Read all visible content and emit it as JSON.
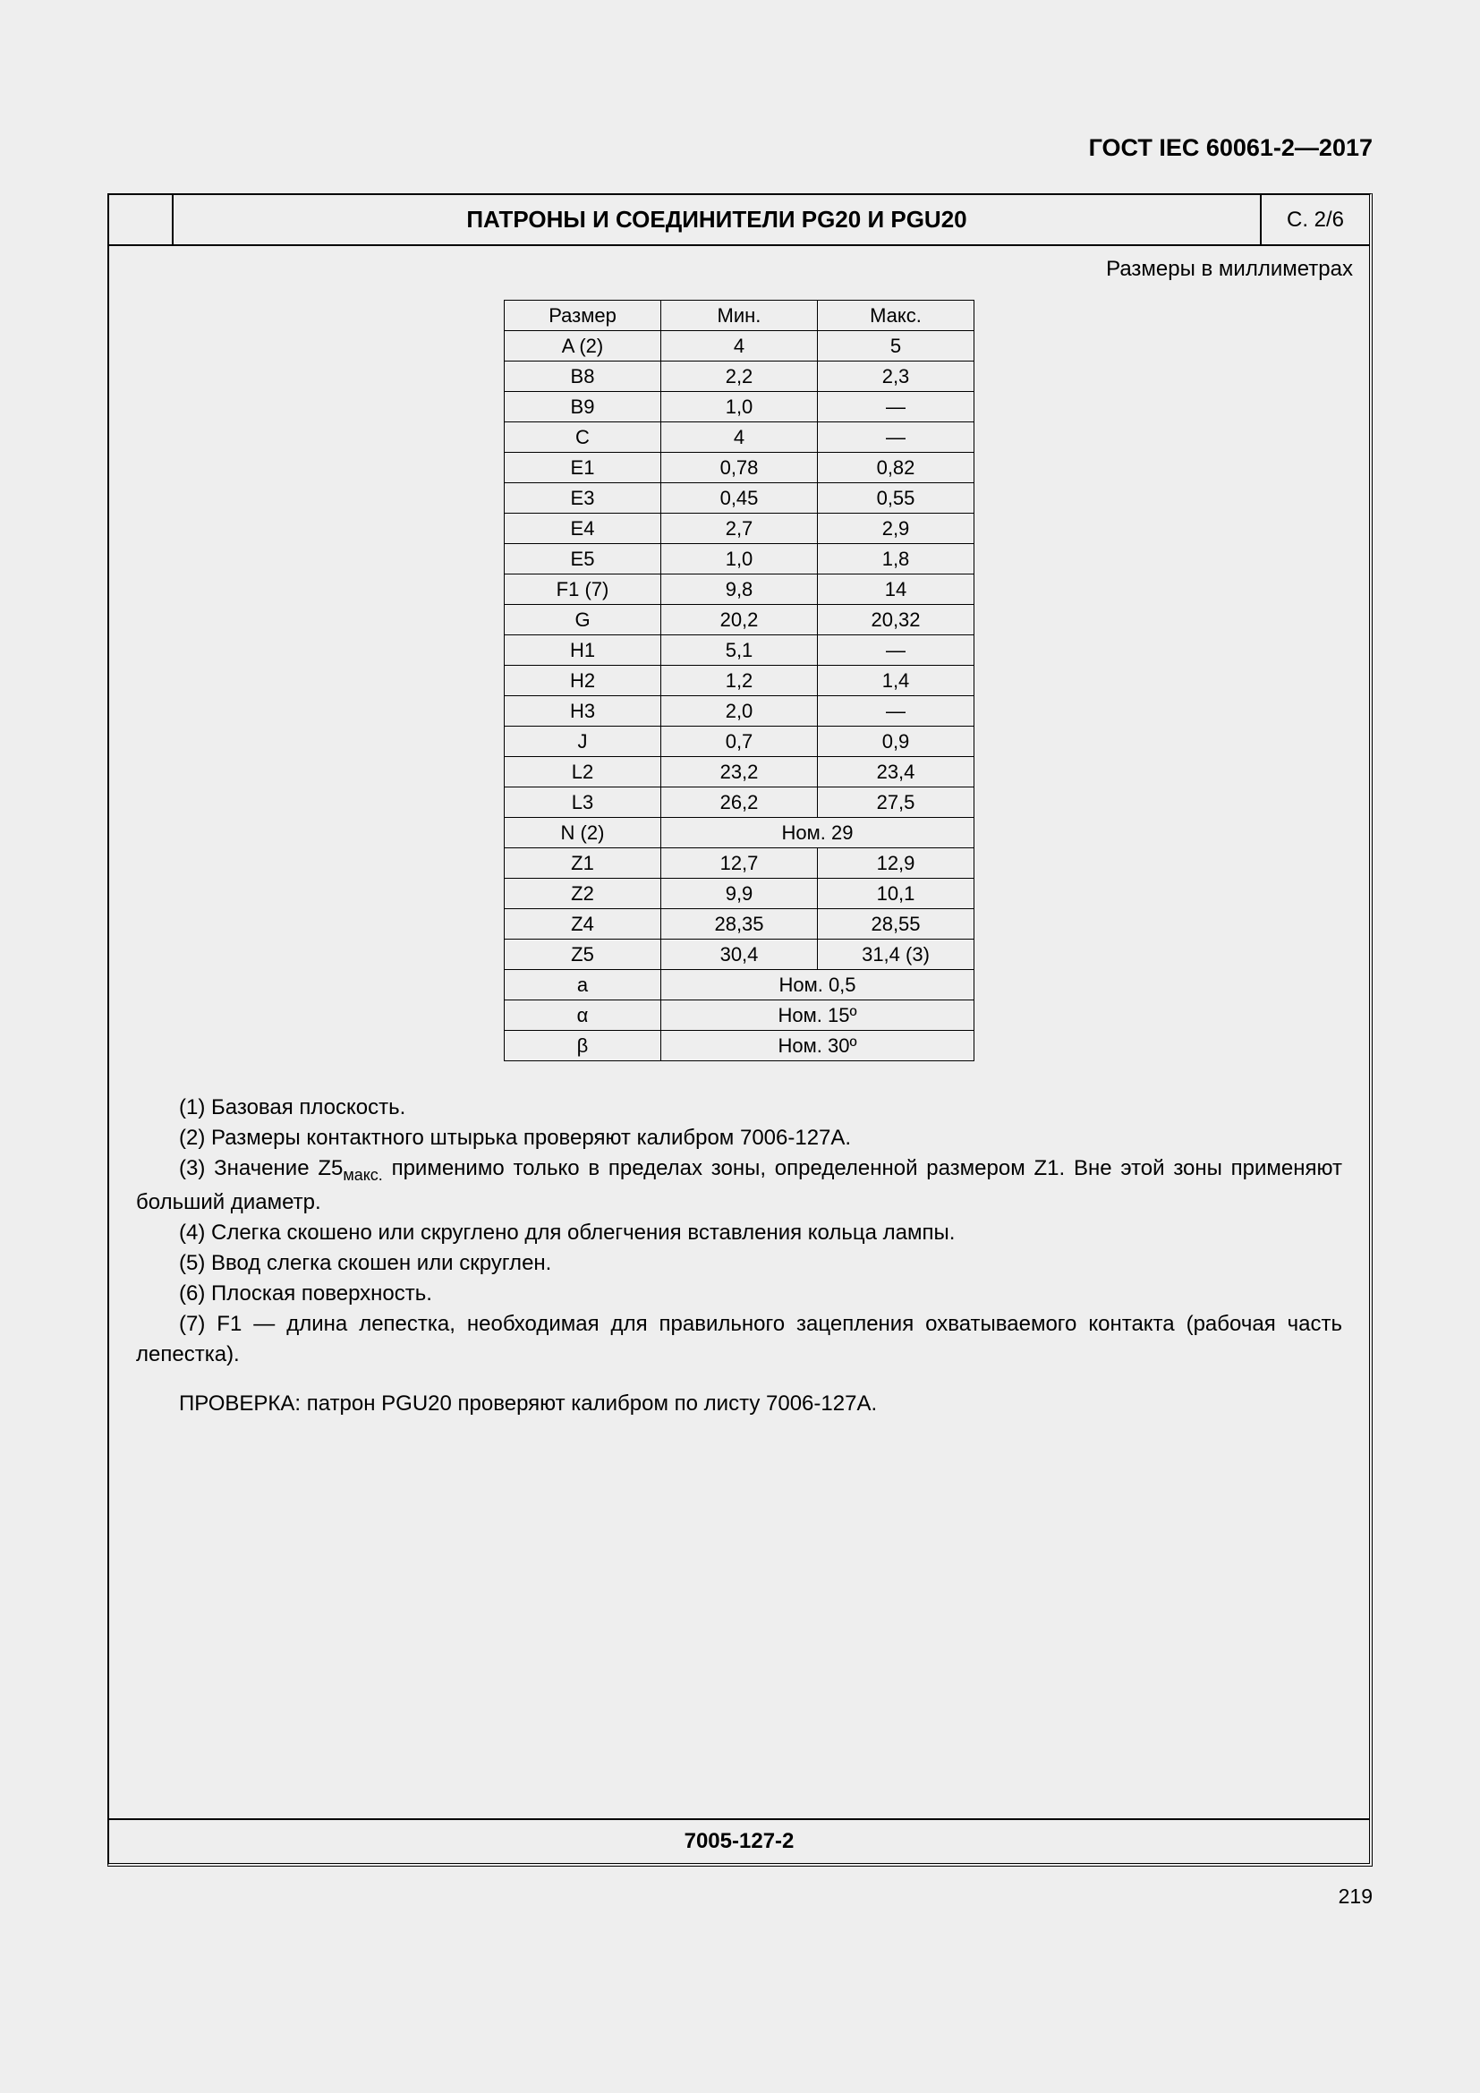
{
  "header": {
    "standard": "ГОСТ IEC 60061-2—2017"
  },
  "titlebar": {
    "title": "ПАТРОНЫ И СОЕДИНИТЕЛИ PG20 И PGU20",
    "pageref": "С. 2/6"
  },
  "units": "Размеры в миллиметрах",
  "table": {
    "headers": {
      "dim": "Размер",
      "min": "Мин.",
      "max": "Макс."
    },
    "rows": [
      {
        "dim": "A (2)",
        "min": "4",
        "max": "5"
      },
      {
        "dim": "B8",
        "min": "2,2",
        "max": "2,3"
      },
      {
        "dim": "B9",
        "min": "1,0",
        "max": "—"
      },
      {
        "dim": "C",
        "min": "4",
        "max": "—"
      },
      {
        "dim": "E1",
        "min": "0,78",
        "max": "0,82"
      },
      {
        "dim": "E3",
        "min": "0,45",
        "max": "0,55"
      },
      {
        "dim": "E4",
        "min": "2,7",
        "max": "2,9"
      },
      {
        "dim": "E5",
        "min": "1,0",
        "max": "1,8"
      },
      {
        "dim": "F1 (7)",
        "min": "9,8",
        "max": "14"
      },
      {
        "dim": "G",
        "min": "20,2",
        "max": "20,32"
      },
      {
        "dim": "H1",
        "min": "5,1",
        "max": "—"
      },
      {
        "dim": "H2",
        "min": "1,2",
        "max": "1,4"
      },
      {
        "dim": "H3",
        "min": "2,0",
        "max": "—"
      },
      {
        "dim": "J",
        "min": "0,7",
        "max": "0,9"
      },
      {
        "dim": "L2",
        "min": "23,2",
        "max": "23,4"
      },
      {
        "dim": "L3",
        "min": "26,2",
        "max": "27,5"
      },
      {
        "dim": "N (2)",
        "span": "Ном. 29"
      },
      {
        "dim": "Z1",
        "min": "12,7",
        "max": "12,9"
      },
      {
        "dim": "Z2",
        "min": "9,9",
        "max": "10,1"
      },
      {
        "dim": "Z4",
        "min": "28,35",
        "max": "28,55"
      },
      {
        "dim": "Z5",
        "min": "30,4",
        "max": "31,4 (3)"
      },
      {
        "dim": "a",
        "span": "Ном. 0,5"
      },
      {
        "dim": "α",
        "span": "Ном. 15º"
      },
      {
        "dim": "β",
        "span": "Ном. 30º"
      }
    ]
  },
  "notes": {
    "n1": "(1) Базовая плоскость.",
    "n2": "(2) Размеры контактного штырька проверяют калибром 7006-127A.",
    "n3a": "(3) Значение Z5",
    "n3sub": "макс.",
    "n3b": " применимо только в пределах зоны, определенной размером Z1. Вне этой зоны применяют больший диаметр.",
    "n4": "(4) Слегка скошено или скруглено для облегчения вставления кольца лампы.",
    "n5": "(5) Ввод слегка скошен или скруглен.",
    "n6": "(6) Плоская поверхность.",
    "n7": "(7) F1 — длина лепестка, необходимая для правильного зацепления охватываемого контакта (рабочая часть лепестка)."
  },
  "check": "ПРОВЕРКА: патрон PGU20 проверяют калибром по листу 7006-127A.",
  "footer": {
    "code": "7005-127-2",
    "pagenum": "219"
  }
}
